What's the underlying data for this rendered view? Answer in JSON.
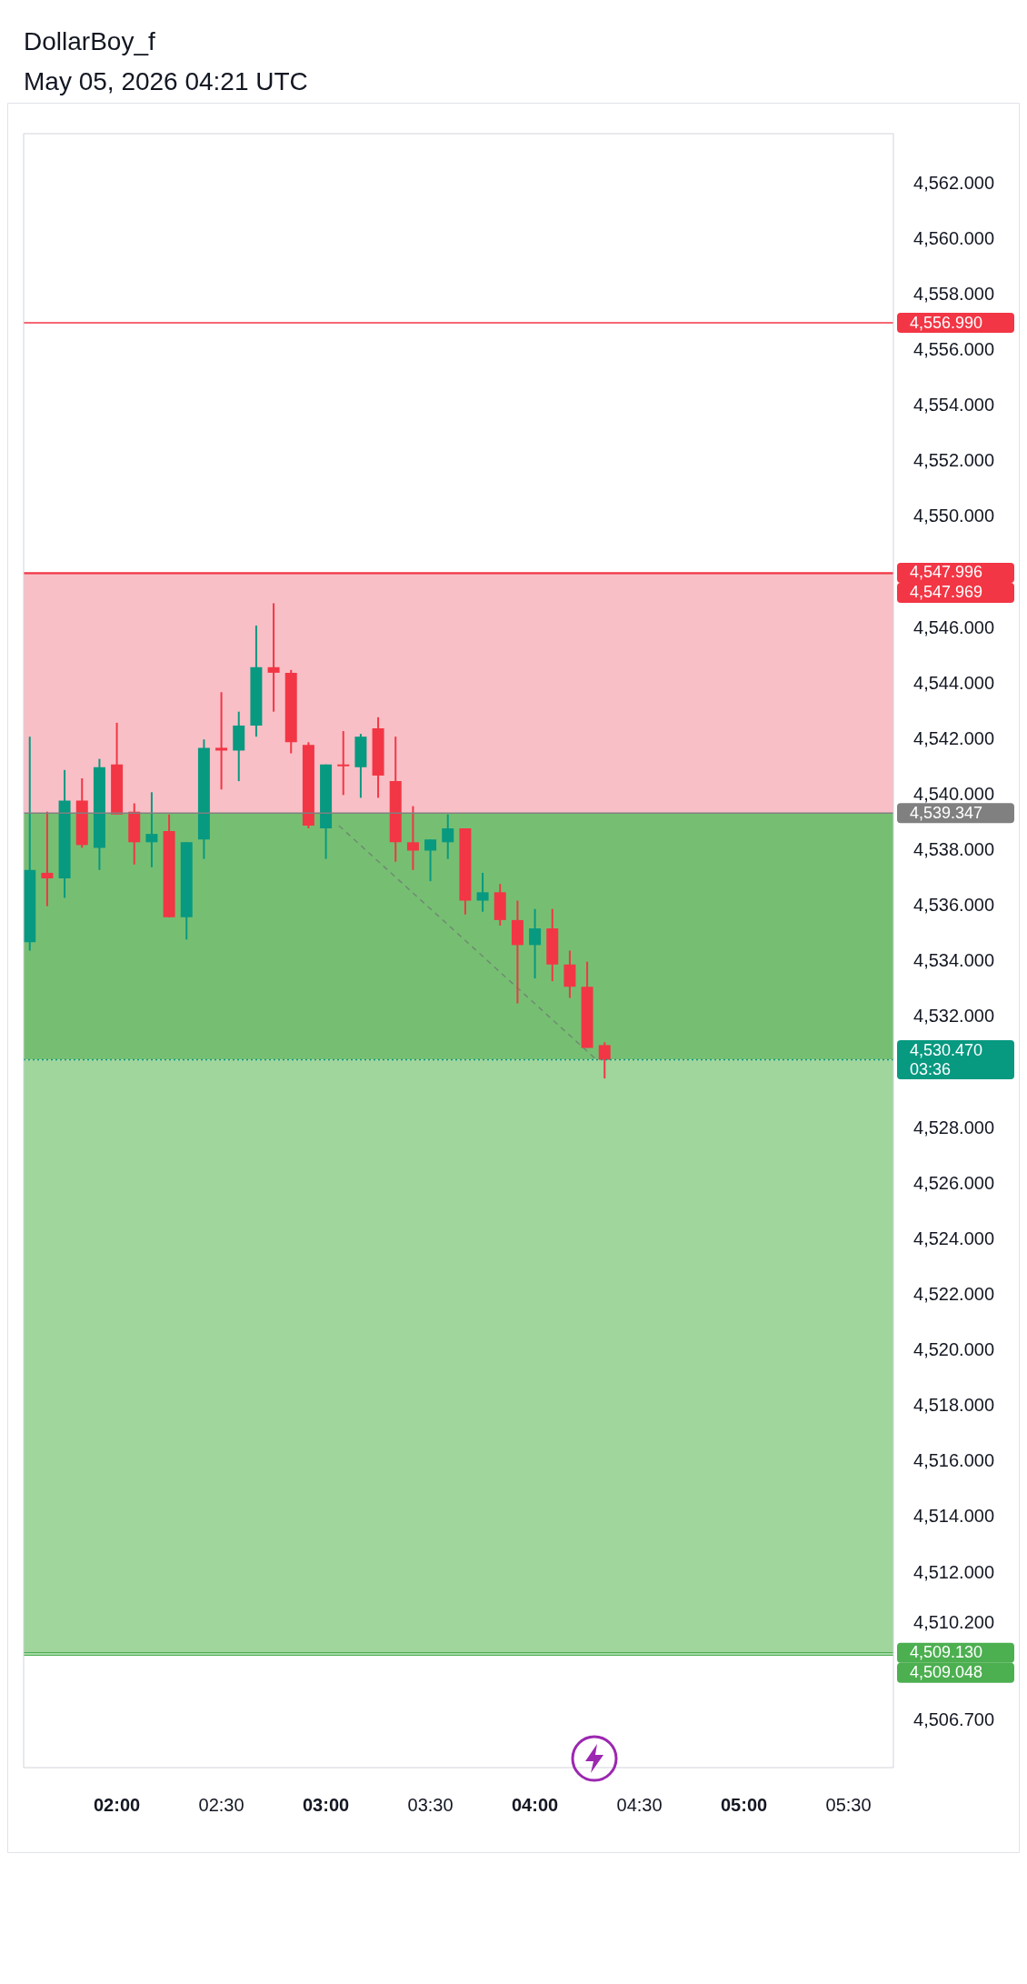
{
  "chart_data": {
    "type": "candlestick",
    "title": "DollarBoy_f",
    "subtitle": "May 05, 2026 04:21 UTC",
    "x": [
      1.5833,
      1.6667,
      1.75,
      1.8333,
      1.9167,
      2,
      2.0833,
      2.1667,
      2.25,
      2.3333,
      2.4167,
      2.5,
      2.5833,
      2.6667,
      2.75,
      2.8333,
      2.9167,
      3,
      3.0833,
      3.1667,
      3.25,
      3.3333,
      3.4167,
      3.5,
      3.5833,
      3.6667,
      3.75,
      3.8333,
      3.9167,
      4,
      4.0833,
      4.1667,
      4.25,
      4.3333
    ],
    "ohlc": [
      [
        4534.7,
        4542.1,
        4534.4,
        4537.3
      ],
      [
        4537.2,
        4539.4,
        4536.0,
        4537.0
      ],
      [
        4537.0,
        4540.9,
        4536.3,
        4539.8
      ],
      [
        4539.8,
        4540.6,
        4538.1,
        4538.2
      ],
      [
        4538.1,
        4541.3,
        4537.3,
        4541.0
      ],
      [
        4541.1,
        4542.6,
        4539.3,
        4539.3
      ],
      [
        4539.4,
        4539.7,
        4537.5,
        4538.3
      ],
      [
        4538.3,
        4540.1,
        4537.4,
        4538.6
      ],
      [
        4538.7,
        4539.3,
        4535.6,
        4535.6
      ],
      [
        4535.6,
        4538.3,
        4534.8,
        4538.3
      ],
      [
        4538.4,
        4542.0,
        4537.7,
        4541.7
      ],
      [
        4541.7,
        4543.7,
        4540.2,
        4541.6
      ],
      [
        4541.6,
        4543.0,
        4540.5,
        4542.5
      ],
      [
        4542.5,
        4546.1,
        4542.1,
        4544.6
      ],
      [
        4544.6,
        4546.9,
        4543.0,
        4544.4
      ],
      [
        4544.4,
        4544.5,
        4541.5,
        4541.9
      ],
      [
        4541.8,
        4541.9,
        4538.8,
        4538.9
      ],
      [
        4538.8,
        4541.1,
        4537.7,
        4541.1
      ],
      [
        4541.1,
        4542.3,
        4540.0,
        4541.1
      ],
      [
        4541.0,
        4542.2,
        4539.9,
        4542.1
      ],
      [
        4542.4,
        4542.8,
        4539.9,
        4540.7
      ],
      [
        4540.5,
        4542.1,
        4537.6,
        4538.3
      ],
      [
        4538.3,
        4539.6,
        4537.3,
        4538.0
      ],
      [
        4538.0,
        4538.4,
        4536.9,
        4538.4
      ],
      [
        4538.3,
        4539.3,
        4537.7,
        4538.8
      ],
      [
        4538.8,
        4538.8,
        4535.7,
        4536.2
      ],
      [
        4536.2,
        4537.2,
        4535.8,
        4536.5
      ],
      [
        4536.5,
        4536.8,
        4535.3,
        4535.5
      ],
      [
        4535.5,
        4536.2,
        4532.5,
        4534.6
      ],
      [
        4534.6,
        4535.9,
        4533.4,
        4535.2
      ],
      [
        4535.2,
        4535.9,
        4533.3,
        4533.9
      ],
      [
        4533.9,
        4534.4,
        4532.7,
        4533.1
      ],
      [
        4533.1,
        4534.0,
        4530.9,
        4530.9
      ],
      [
        4531.0,
        4531.1,
        4529.8,
        4530.47
      ]
    ],
    "colors": [
      "#089981",
      "#f23645",
      "#089981",
      "#f23645",
      "#089981",
      "#f23645",
      "#f23645",
      "#089981",
      "#f23645",
      "#089981",
      "#089981",
      "#f23645",
      "#089981",
      "#089981",
      "#f23645",
      "#f23645",
      "#f23645",
      "#089981",
      "#f23645",
      "#089981",
      "#f23645",
      "#f23645",
      "#f23645",
      "#089981",
      "#089981",
      "#f23645",
      "#089981",
      "#f23645",
      "#f23645",
      "#089981",
      "#f23645",
      "#f23645",
      "#f23645",
      "#f23645"
    ],
    "series": [
      {
        "type": "line",
        "x": [
          3.062,
          4.298
        ],
        "values": [
          4538.9,
          4530.45
        ],
        "color": "#6f8a72",
        "line_style": "dashed"
      }
    ],
    "xlim": [
      1.554,
      5.715
    ],
    "xticks": [
      {
        "value": 2,
        "label": "02:00"
      },
      {
        "value": 2.5,
        "label": "02:30"
      },
      {
        "value": 3,
        "label": "03:00"
      },
      {
        "value": 3.5,
        "label": "03:30"
      },
      {
        "value": 4,
        "label": "04:00"
      },
      {
        "value": 4.5,
        "label": "04:30"
      },
      {
        "value": 5,
        "label": "05:00"
      },
      {
        "value": 5.5,
        "label": "05:30"
      }
    ],
    "ylim": [
      4505,
      4563.8
    ],
    "yticks": [
      {
        "value": 4562,
        "label": "4,562.000"
      },
      {
        "value": 4560,
        "label": "4,560.000"
      },
      {
        "value": 4558,
        "label": "4,558.000"
      },
      {
        "value": 4556,
        "label": "4,556.000"
      },
      {
        "value": 4554,
        "label": "4,554.000"
      },
      {
        "value": 4552,
        "label": "4,552.000"
      },
      {
        "value": 4550,
        "label": "4,550.000"
      },
      {
        "value": 4546,
        "label": "4,546.000"
      },
      {
        "value": 4544,
        "label": "4,544.000"
      },
      {
        "value": 4542,
        "label": "4,542.000"
      },
      {
        "value": 4540,
        "label": "4,540.000"
      },
      {
        "value": 4538,
        "label": "4,538.000"
      },
      {
        "value": 4536,
        "label": "4,536.000"
      },
      {
        "value": 4534,
        "label": "4,534.000"
      },
      {
        "value": 4532,
        "label": "4,532.000"
      },
      {
        "value": 4528,
        "label": "4,528.000"
      },
      {
        "value": 4526,
        "label": "4,526.000"
      },
      {
        "value": 4524,
        "label": "4,524.000"
      },
      {
        "value": 4522,
        "label": "4,522.000"
      },
      {
        "value": 4520,
        "label": "4,520.000"
      },
      {
        "value": 4518,
        "label": "4,518.000"
      },
      {
        "value": 4516,
        "label": "4,516.000"
      },
      {
        "value": 4514,
        "label": "4,514.000"
      },
      {
        "value": 4512,
        "label": "4,512.000"
      },
      {
        "value": 4510.2,
        "label": "4,510.200"
      },
      {
        "value": 4506.7,
        "label": "4,506.700"
      }
    ],
    "bands": [
      {
        "axis": "y",
        "from": 4539.347,
        "to": 4547.969,
        "color": "#f9bfc6"
      },
      {
        "axis": "y",
        "from": 4530.47,
        "to": 4539.347,
        "color": "#76bf72"
      },
      {
        "axis": "y",
        "from": 4509.13,
        "to": 4530.47,
        "color": "#a0d59c"
      }
    ],
    "ref_lines": [
      {
        "axis": "y",
        "value": 4556.99,
        "label": "4,556.990",
        "color": "#f23645"
      },
      {
        "axis": "y",
        "value": 4547.996,
        "label": "4,547.996",
        "color": "#f23645"
      },
      {
        "axis": "y",
        "value": 4547.969,
        "label": "4,547.969",
        "color": "#f23645"
      },
      {
        "axis": "y",
        "value": 4539.347,
        "label": "4,539.347",
        "color": "#808080"
      },
      {
        "axis": "y",
        "value": 4530.47,
        "label": "4,530.470\n03:36",
        "color": "#089981",
        "line_style": "dotted"
      },
      {
        "axis": "y",
        "value": 4509.13,
        "label": "4,509.130",
        "color": "#4caf50"
      },
      {
        "axis": "y",
        "value": 4509.048,
        "label": "4,509.048",
        "color": "#4caf50"
      }
    ]
  }
}
